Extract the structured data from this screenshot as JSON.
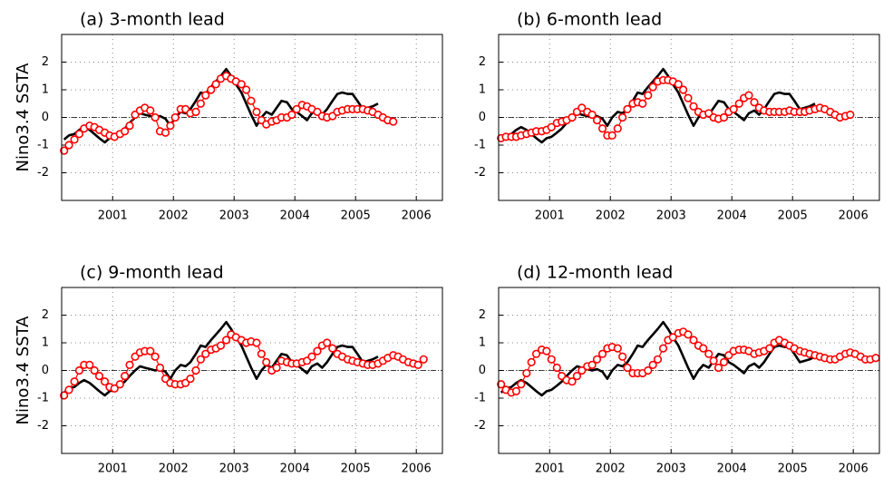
{
  "chart_data": [
    {
      "type": "line",
      "title": "(a) 3-month lead",
      "y_label": "Nino3.4 SSTA",
      "x": [
        2000.2,
        2000.28,
        2000.37,
        2000.45,
        2000.53,
        2000.62,
        2000.7,
        2000.78,
        2000.87,
        2000.95,
        2001.03,
        2001.12,
        2001.2,
        2001.28,
        2001.37,
        2001.45,
        2001.53,
        2001.62,
        2001.7,
        2001.78,
        2001.87,
        2001.95,
        2002.03,
        2002.12,
        2002.2,
        2002.28,
        2002.37,
        2002.45,
        2002.53,
        2002.62,
        2002.7,
        2002.78,
        2002.87,
        2002.95,
        2003.03,
        2003.12,
        2003.2,
        2003.28,
        2003.37,
        2003.45,
        2003.53,
        2003.62,
        2003.7,
        2003.78,
        2003.87,
        2003.95,
        2004.03,
        2004.12,
        2004.2,
        2004.28,
        2004.37,
        2004.45,
        2004.53,
        2004.62,
        2004.7,
        2004.78,
        2004.87,
        2004.95,
        2005.03,
        2005.12,
        2005.2,
        2005.28,
        2005.37,
        2005.45,
        2005.53,
        2005.62,
        2005.7,
        2005.78,
        2005.87,
        2005.95,
        2006.03,
        2006.12,
        2006.2,
        2006.28,
        2006.37
      ],
      "series": [
        {
          "color": "#000000",
          "marker": "none",
          "values": [
            -0.8,
            -0.65,
            -0.6,
            -0.45,
            -0.35,
            -0.45,
            -0.6,
            -0.75,
            -0.9,
            -0.75,
            -0.7,
            -0.55,
            -0.4,
            -0.2,
            0.0,
            0.15,
            0.1,
            0.05,
            0.0,
            0.05,
            -0.05,
            -0.3,
            0.0,
            0.2,
            0.15,
            0.3,
            0.6,
            0.9,
            0.85,
            1.1,
            1.3,
            1.5,
            1.75,
            1.5,
            1.2,
            0.9,
            0.5,
            0.1,
            -0.3,
            0.0,
            0.2,
            0.1,
            0.35,
            0.6,
            0.55,
            0.3,
            0.2,
            0.05,
            -0.1,
            0.15,
            0.25,
            0.1,
            0.3,
            0.6,
            0.85,
            0.9,
            0.85,
            0.85,
            0.6,
            0.3,
            0.35,
            0.4,
            0.5,
            null,
            null,
            null,
            null,
            null,
            null,
            null,
            null,
            null,
            null,
            null,
            null
          ]
        },
        {
          "color": "#ff0000",
          "marker": "circle",
          "values": [
            -1.2,
            -1.0,
            -0.8,
            -0.6,
            -0.4,
            -0.3,
            -0.35,
            -0.45,
            -0.55,
            -0.65,
            -0.7,
            -0.6,
            -0.5,
            -0.3,
            0.1,
            0.25,
            0.35,
            0.25,
            0.0,
            -0.5,
            -0.55,
            -0.3,
            0.0,
            0.3,
            0.3,
            0.15,
            0.2,
            0.5,
            0.8,
            1.0,
            1.2,
            1.4,
            1.5,
            1.4,
            1.3,
            1.2,
            1.0,
            0.6,
            0.2,
            -0.1,
            -0.25,
            -0.15,
            -0.1,
            0.0,
            0.0,
            0.1,
            0.3,
            0.45,
            0.4,
            0.3,
            0.2,
            0.05,
            0.0,
            0.05,
            0.2,
            0.25,
            0.3,
            0.3,
            0.3,
            0.3,
            0.25,
            0.2,
            0.1,
            0.0,
            -0.1,
            -0.15,
            null,
            null,
            null,
            null,
            null,
            null,
            null,
            null,
            null
          ]
        }
      ],
      "xlim": [
        2000.16,
        2006.43
      ],
      "xticks": [
        2001,
        2002,
        2003,
        2004,
        2005,
        2006
      ],
      "ylim": [
        -3,
        3
      ],
      "yticks": [
        -2,
        -1,
        0,
        1,
        2
      ],
      "grid": true,
      "reference_line": 0
    },
    {
      "type": "line",
      "title": "(b) 6-month lead",
      "x": [
        2000.2,
        2000.28,
        2000.37,
        2000.45,
        2000.53,
        2000.62,
        2000.7,
        2000.78,
        2000.87,
        2000.95,
        2001.03,
        2001.12,
        2001.2,
        2001.28,
        2001.37,
        2001.45,
        2001.53,
        2001.62,
        2001.7,
        2001.78,
        2001.87,
        2001.95,
        2002.03,
        2002.12,
        2002.2,
        2002.28,
        2002.37,
        2002.45,
        2002.53,
        2002.62,
        2002.7,
        2002.78,
        2002.87,
        2002.95,
        2003.03,
        2003.12,
        2003.2,
        2003.28,
        2003.37,
        2003.45,
        2003.53,
        2003.62,
        2003.7,
        2003.78,
        2003.87,
        2003.95,
        2004.03,
        2004.12,
        2004.2,
        2004.28,
        2004.37,
        2004.45,
        2004.53,
        2004.62,
        2004.7,
        2004.78,
        2004.87,
        2004.95,
        2005.03,
        2005.12,
        2005.2,
        2005.28,
        2005.37,
        2005.45,
        2005.53,
        2005.62,
        2005.7,
        2005.78,
        2005.87,
        2005.95,
        2006.03,
        2006.12,
        2006.2,
        2006.28,
        2006.37
      ],
      "series": [
        {
          "color": "#000000",
          "marker": "none",
          "values": [
            -0.8,
            -0.65,
            -0.6,
            -0.45,
            -0.35,
            -0.45,
            -0.6,
            -0.75,
            -0.9,
            -0.75,
            -0.7,
            -0.55,
            -0.4,
            -0.2,
            0.0,
            0.15,
            0.1,
            0.05,
            0.0,
            0.05,
            -0.05,
            -0.3,
            0.0,
            0.2,
            0.15,
            0.3,
            0.6,
            0.9,
            0.85,
            1.1,
            1.3,
            1.5,
            1.75,
            1.5,
            1.2,
            0.9,
            0.5,
            0.1,
            -0.3,
            0.0,
            0.2,
            0.1,
            0.35,
            0.6,
            0.55,
            0.3,
            0.2,
            0.05,
            -0.1,
            0.15,
            0.25,
            0.1,
            0.3,
            0.6,
            0.85,
            0.9,
            0.85,
            0.85,
            0.6,
            0.3,
            0.35,
            0.4,
            0.5,
            null,
            null,
            null,
            null,
            null,
            null,
            null,
            null,
            null,
            null,
            null,
            null
          ]
        },
        {
          "color": "#ff0000",
          "marker": "circle",
          "values": [
            -0.75,
            -0.7,
            -0.7,
            -0.7,
            -0.65,
            -0.6,
            -0.55,
            -0.5,
            -0.5,
            -0.45,
            -0.35,
            -0.2,
            -0.15,
            -0.1,
            0.0,
            0.2,
            0.35,
            0.2,
            0.1,
            -0.1,
            -0.4,
            -0.65,
            -0.65,
            -0.4,
            0.0,
            0.3,
            0.5,
            0.55,
            0.5,
            0.8,
            1.1,
            1.3,
            1.35,
            1.35,
            1.3,
            1.2,
            1.0,
            0.7,
            0.4,
            0.2,
            0.1,
            0.15,
            0.0,
            -0.05,
            0.0,
            0.2,
            0.3,
            0.5,
            0.7,
            0.8,
            0.55,
            0.35,
            0.25,
            0.2,
            0.2,
            0.2,
            0.2,
            0.25,
            0.2,
            0.2,
            0.2,
            0.25,
            0.3,
            0.35,
            0.3,
            0.2,
            0.1,
            0.0,
            0.05,
            0.1,
            null,
            null,
            null,
            null,
            null
          ]
        }
      ],
      "xlim": [
        2000.16,
        2006.43
      ],
      "xticks": [
        2001,
        2002,
        2003,
        2004,
        2005,
        2006
      ],
      "ylim": [
        -3,
        3
      ],
      "yticks": [
        -2,
        -1,
        0,
        1,
        2
      ],
      "grid": true,
      "reference_line": 0
    },
    {
      "type": "line",
      "title": "(c) 9-month lead",
      "y_label": "Nino3.4 SSTA",
      "x": [
        2000.2,
        2000.28,
        2000.37,
        2000.45,
        2000.53,
        2000.62,
        2000.7,
        2000.78,
        2000.87,
        2000.95,
        2001.03,
        2001.12,
        2001.2,
        2001.28,
        2001.37,
        2001.45,
        2001.53,
        2001.62,
        2001.7,
        2001.78,
        2001.87,
        2001.95,
        2002.03,
        2002.12,
        2002.2,
        2002.28,
        2002.37,
        2002.45,
        2002.53,
        2002.62,
        2002.7,
        2002.78,
        2002.87,
        2002.95,
        2003.03,
        2003.12,
        2003.2,
        2003.28,
        2003.37,
        2003.45,
        2003.53,
        2003.62,
        2003.7,
        2003.78,
        2003.87,
        2003.95,
        2004.03,
        2004.12,
        2004.2,
        2004.28,
        2004.37,
        2004.45,
        2004.53,
        2004.62,
        2004.7,
        2004.78,
        2004.87,
        2004.95,
        2005.03,
        2005.12,
        2005.2,
        2005.28,
        2005.37,
        2005.45,
        2005.53,
        2005.62,
        2005.7,
        2005.78,
        2005.87,
        2005.95,
        2006.03,
        2006.12,
        2006.2,
        2006.28,
        2006.37
      ],
      "series": [
        {
          "color": "#000000",
          "marker": "none",
          "values": [
            -0.8,
            -0.65,
            -0.6,
            -0.45,
            -0.35,
            -0.45,
            -0.6,
            -0.75,
            -0.9,
            -0.75,
            -0.7,
            -0.55,
            -0.4,
            -0.2,
            0.0,
            0.15,
            0.1,
            0.05,
            0.0,
            0.05,
            -0.05,
            -0.3,
            0.0,
            0.2,
            0.15,
            0.3,
            0.6,
            0.9,
            0.85,
            1.1,
            1.3,
            1.5,
            1.75,
            1.5,
            1.2,
            0.9,
            0.5,
            0.1,
            -0.3,
            0.0,
            0.2,
            0.1,
            0.35,
            0.6,
            0.55,
            0.3,
            0.2,
            0.05,
            -0.1,
            0.15,
            0.25,
            0.1,
            0.3,
            0.6,
            0.85,
            0.9,
            0.85,
            0.85,
            0.6,
            0.3,
            0.35,
            0.4,
            0.5,
            null,
            null,
            null,
            null,
            null,
            null,
            null,
            null,
            null,
            null,
            null,
            null
          ]
        },
        {
          "color": "#ff0000",
          "marker": "circle",
          "values": [
            -0.9,
            -0.7,
            -0.4,
            0.0,
            0.2,
            0.2,
            0.0,
            -0.2,
            -0.4,
            -0.6,
            -0.65,
            -0.5,
            -0.2,
            0.2,
            0.5,
            0.65,
            0.7,
            0.7,
            0.5,
            0.1,
            -0.3,
            -0.45,
            -0.5,
            -0.5,
            -0.45,
            -0.3,
            0.0,
            0.4,
            0.6,
            0.75,
            0.8,
            0.9,
            1.1,
            1.3,
            1.2,
            1.1,
            1.0,
            1.05,
            1.0,
            0.6,
            0.3,
            0.0,
            0.1,
            0.35,
            0.3,
            0.25,
            0.25,
            0.3,
            0.35,
            0.5,
            0.7,
            0.9,
            1.0,
            0.8,
            0.6,
            0.5,
            0.4,
            0.35,
            0.3,
            0.25,
            0.2,
            0.2,
            0.25,
            0.35,
            0.45,
            0.55,
            0.5,
            0.4,
            0.3,
            0.25,
            0.2,
            0.4,
            null,
            null,
            null
          ]
        }
      ],
      "xlim": [
        2000.16,
        2006.43
      ],
      "xticks": [
        2001,
        2002,
        2003,
        2004,
        2005,
        2006
      ],
      "ylim": [
        -3,
        3
      ],
      "yticks": [
        -2,
        -1,
        0,
        1,
        2
      ],
      "grid": true,
      "reference_line": 0
    },
    {
      "type": "line",
      "title": "(d) 12-month lead",
      "x": [
        2000.2,
        2000.28,
        2000.37,
        2000.45,
        2000.53,
        2000.62,
        2000.7,
        2000.78,
        2000.87,
        2000.95,
        2001.03,
        2001.12,
        2001.2,
        2001.28,
        2001.37,
        2001.45,
        2001.53,
        2001.62,
        2001.7,
        2001.78,
        2001.87,
        2001.95,
        2002.03,
        2002.12,
        2002.2,
        2002.28,
        2002.37,
        2002.45,
        2002.53,
        2002.62,
        2002.7,
        2002.78,
        2002.87,
        2002.95,
        2003.03,
        2003.12,
        2003.2,
        2003.28,
        2003.37,
        2003.45,
        2003.53,
        2003.62,
        2003.7,
        2003.78,
        2003.87,
        2003.95,
        2004.03,
        2004.12,
        2004.2,
        2004.28,
        2004.37,
        2004.45,
        2004.53,
        2004.62,
        2004.7,
        2004.78,
        2004.87,
        2004.95,
        2005.03,
        2005.12,
        2005.2,
        2005.28,
        2005.37,
        2005.45,
        2005.53,
        2005.62,
        2005.7,
        2005.78,
        2005.87,
        2005.95,
        2006.03,
        2006.12,
        2006.2,
        2006.28,
        2006.37
      ],
      "series": [
        {
          "color": "#000000",
          "marker": "none",
          "values": [
            -0.8,
            -0.65,
            -0.6,
            -0.45,
            -0.35,
            -0.45,
            -0.6,
            -0.75,
            -0.9,
            -0.75,
            -0.7,
            -0.55,
            -0.4,
            -0.2,
            0.0,
            0.15,
            0.1,
            0.05,
            0.0,
            0.05,
            -0.05,
            -0.3,
            0.0,
            0.2,
            0.15,
            0.3,
            0.6,
            0.9,
            0.85,
            1.1,
            1.3,
            1.5,
            1.75,
            1.5,
            1.2,
            0.9,
            0.5,
            0.1,
            -0.3,
            0.0,
            0.2,
            0.1,
            0.35,
            0.6,
            0.55,
            0.3,
            0.2,
            0.05,
            -0.1,
            0.15,
            0.25,
            0.1,
            0.3,
            0.6,
            0.85,
            0.9,
            0.85,
            0.85,
            0.6,
            0.3,
            0.35,
            0.4,
            0.5,
            null,
            null,
            null,
            null,
            null,
            null,
            null,
            null,
            null,
            null,
            null,
            null
          ]
        },
        {
          "color": "#ff0000",
          "marker": "circle",
          "values": [
            -0.5,
            -0.7,
            -0.8,
            -0.75,
            -0.5,
            -0.1,
            0.3,
            0.6,
            0.75,
            0.7,
            0.4,
            0.1,
            -0.2,
            -0.35,
            -0.4,
            -0.2,
            0.0,
            0.15,
            0.2,
            0.4,
            0.6,
            0.8,
            0.85,
            0.8,
            0.5,
            0.1,
            -0.1,
            -0.1,
            -0.1,
            0.0,
            0.2,
            0.4,
            0.8,
            1.1,
            1.2,
            1.35,
            1.4,
            1.3,
            1.1,
            0.9,
            0.8,
            0.6,
            0.35,
            0.1,
            0.3,
            0.55,
            0.7,
            0.75,
            0.75,
            0.7,
            0.6,
            0.65,
            0.7,
            0.8,
            1.0,
            1.1,
            1.0,
            0.9,
            0.8,
            0.7,
            0.65,
            0.6,
            0.55,
            0.5,
            0.45,
            0.4,
            0.4,
            0.5,
            0.6,
            0.65,
            0.6,
            0.5,
            0.4,
            0.4,
            0.45
          ]
        }
      ],
      "xlim": [
        2000.16,
        2006.43
      ],
      "xticks": [
        2001,
        2002,
        2003,
        2004,
        2005,
        2006
      ],
      "ylim": [
        -3,
        3
      ],
      "yticks": [
        -2,
        -1,
        0,
        1,
        2
      ],
      "grid": true,
      "reference_line": 0
    }
  ]
}
